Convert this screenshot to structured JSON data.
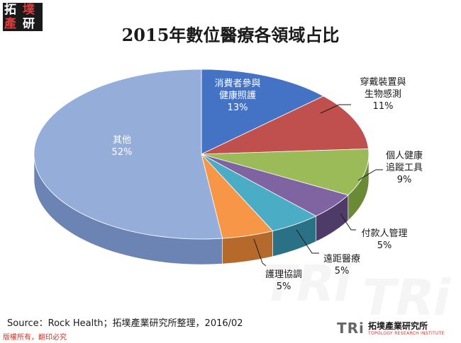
{
  "logo": {
    "chars": [
      "拓",
      "墣",
      "產",
      "研"
    ]
  },
  "chart_data": {
    "type": "pie",
    "title": "2015年數位醫療各領域占比",
    "slices": [
      {
        "label_lines": [
          "消費者參與",
          "健康照護"
        ],
        "value": 13,
        "value_label": "13%",
        "color": "#4472c4",
        "side_color": "#2f5597"
      },
      {
        "label_lines": [
          "穿戴裝置與",
          "生物感測"
        ],
        "value": 11,
        "value_label": "11%",
        "color": "#c0504d",
        "side_color": "#8b2f2d"
      },
      {
        "label_lines": [
          "個人健康",
          "追蹤工具"
        ],
        "value": 9,
        "value_label": "9%",
        "color": "#9bbb59",
        "side_color": "#6b8a36"
      },
      {
        "label_lines": [
          "付款人管理"
        ],
        "value": 5,
        "value_label": "5%",
        "color": "#8064a2",
        "side_color": "#4f3b68"
      },
      {
        "label_lines": [
          "遠距醫療"
        ],
        "value": 5,
        "value_label": "5%",
        "color": "#4bacc6",
        "side_color": "#2a7185"
      },
      {
        "label_lines": [
          "護理協調"
        ],
        "value": 5,
        "value_label": "5%",
        "color": "#f79646",
        "side_color": "#b56a2c"
      },
      {
        "label_lines": [
          "其他"
        ],
        "value": 52,
        "value_label": "52%",
        "color": "#95aed9",
        "side_color": "#6b84b4"
      }
    ]
  },
  "source": "Source：Rock Health；拓墣產業研究所整理，2016/02",
  "copyright": "版權所有，翻印必究",
  "watermark": "TRi",
  "footer": {
    "brand": "TRi",
    "name": "拓墣產業研究所",
    "en": "TOPOLOGY RESEARCH INSTITUTE"
  }
}
